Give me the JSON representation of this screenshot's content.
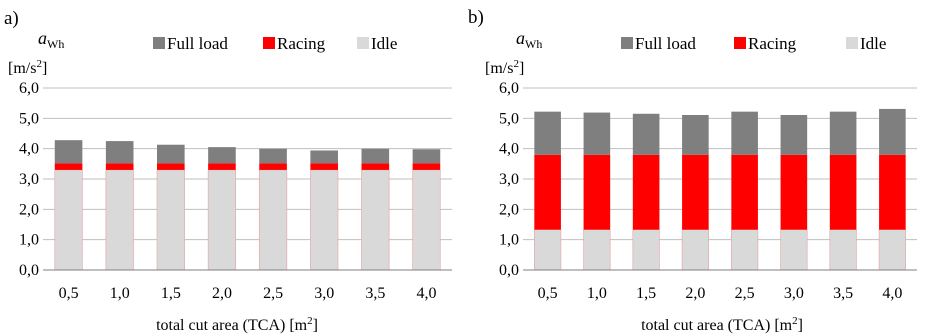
{
  "chart_data": [
    {
      "type": "bar",
      "stacked": true,
      "panel_label": "a)",
      "ylabel_symbol": "a",
      "ylabel_subscript": "Wh",
      "ylabel_unit": "[m/s",
      "ylabel_unit_sup": "2",
      "ylabel_unit_close": "]",
      "xlabel": "total cut area (TCA) [m",
      "xlabel_sup": "2",
      "xlabel_close": "]",
      "categories": [
        "0,5",
        "1,0",
        "1,5",
        "2,0",
        "2,5",
        "3,0",
        "3,5",
        "4,0"
      ],
      "yticks": [
        "0,0",
        "1,0",
        "2,0",
        "3,0",
        "4,0",
        "5,0",
        "6,0"
      ],
      "ylim": [
        0,
        6
      ],
      "legend": "top",
      "grid": true,
      "series": [
        {
          "name": "Idle",
          "color": "#d9d9d9",
          "values": [
            3.3,
            3.3,
            3.3,
            3.3,
            3.3,
            3.3,
            3.3,
            3.3
          ]
        },
        {
          "name": "Racing",
          "color": "#ff0000",
          "values": [
            0.22,
            0.22,
            0.22,
            0.22,
            0.22,
            0.22,
            0.22,
            0.22
          ]
        },
        {
          "name": "Full load",
          "color": "#7f7f7f",
          "values": [
            0.76,
            0.73,
            0.61,
            0.53,
            0.48,
            0.42,
            0.48,
            0.46
          ]
        }
      ]
    },
    {
      "type": "bar",
      "stacked": true,
      "panel_label": "b)",
      "ylabel_symbol": "a",
      "ylabel_subscript": "Wh",
      "ylabel_unit": "[m/s",
      "ylabel_unit_sup": "2",
      "ylabel_unit_close": "]",
      "xlabel": "total cut area (TCA) [m",
      "xlabel_sup": "2",
      "xlabel_close": "]",
      "categories": [
        "0,5",
        "1,0",
        "1,5",
        "2,0",
        "2,5",
        "3,0",
        "3,5",
        "4,0"
      ],
      "yticks": [
        "0,0",
        "1,0",
        "2,0",
        "3,0",
        "4,0",
        "5,0",
        "6,0"
      ],
      "ylim": [
        0,
        6
      ],
      "legend": "top",
      "grid": true,
      "series": [
        {
          "name": "Idle",
          "color": "#d9d9d9",
          "values": [
            1.33,
            1.33,
            1.33,
            1.33,
            1.33,
            1.33,
            1.33,
            1.33
          ]
        },
        {
          "name": "Racing",
          "color": "#ff0000",
          "values": [
            2.47,
            2.47,
            2.47,
            2.47,
            2.47,
            2.47,
            2.47,
            2.47
          ]
        },
        {
          "name": "Full load",
          "color": "#7f7f7f",
          "values": [
            1.42,
            1.39,
            1.35,
            1.31,
            1.42,
            1.31,
            1.42,
            1.51
          ]
        }
      ]
    }
  ]
}
